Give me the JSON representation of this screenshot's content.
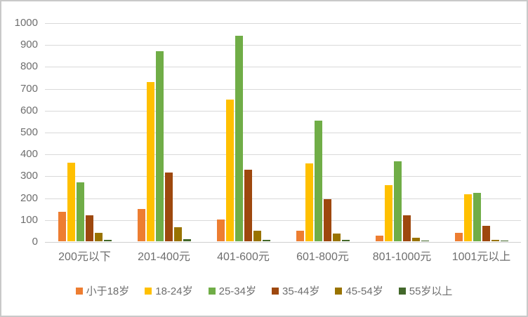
{
  "chart_data": {
    "type": "bar",
    "title": "",
    "xlabel": "",
    "ylabel": "",
    "ylim": [
      0,
      1000
    ],
    "y_ticks": [
      0,
      100,
      200,
      300,
      400,
      500,
      600,
      700,
      800,
      900,
      1000
    ],
    "grid": true,
    "legend_position": "bottom",
    "categories": [
      "200元以下",
      "201-400元",
      "401-600元",
      "601-800元",
      "801-1000元",
      "1001元以上"
    ],
    "series": [
      {
        "name": "小于18岁",
        "color": "#ED7D31",
        "values": [
          135,
          148,
          98,
          48,
          27,
          37
        ]
      },
      {
        "name": "18-24岁",
        "color": "#FFC000",
        "values": [
          358,
          727,
          648,
          355,
          255,
          215
        ]
      },
      {
        "name": "25-34岁",
        "color": "#70AD47",
        "values": [
          270,
          870,
          940,
          550,
          365,
          220
        ]
      },
      {
        "name": "35-44岁",
        "color": "#9E480E",
        "values": [
          118,
          313,
          328,
          193,
          120,
          70
        ]
      },
      {
        "name": "45-54岁",
        "color": "#997300",
        "values": [
          38,
          65,
          48,
          35,
          15,
          8
        ]
      },
      {
        "name": "55岁以上",
        "color": "#43682B",
        "values": [
          6,
          10,
          8,
          7,
          2,
          2
        ]
      }
    ],
    "colors": {
      "gridline": "#D9D9D9",
      "axis_line": "#CFCFCF",
      "axis_text": "#6E6E6E",
      "background": "#FFFFFF",
      "frame_border": "#C9C9C9"
    }
  }
}
